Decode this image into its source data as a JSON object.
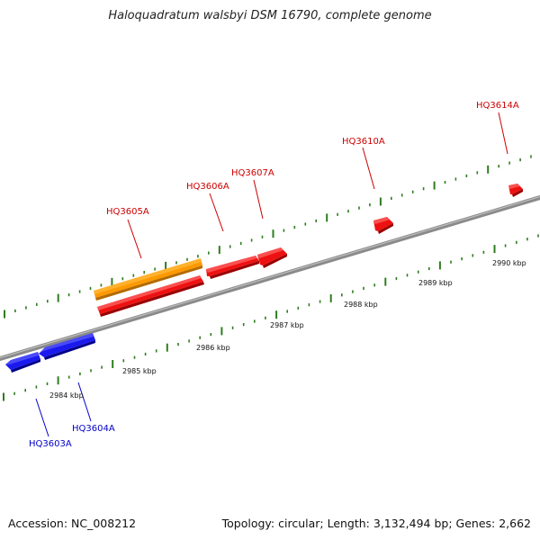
{
  "title": "Haloquadratum walsbyi DSM 16790, complete genome",
  "footer": {
    "accession": "Accession: NC_008212",
    "summary": "Topology: circular; Length: 3,132,494 bp; Genes: 2,662"
  },
  "colors": {
    "backbone": "#8a8a8a",
    "tick": "#2e7d1e",
    "forward_gene": "#ee1111",
    "forward_label": "#cc0000",
    "reverse_gene": "#1a1aee",
    "reverse_label": "#0000cc",
    "other_gene": "#ff9900"
  },
  "ruler_labels": [
    {
      "kbp": 2984,
      "text": "2984 kbp"
    },
    {
      "kbp": 2985,
      "text": "2985 kbp"
    },
    {
      "kbp": 2986,
      "text": "2986 kbp"
    },
    {
      "kbp": 2987,
      "text": "2987 kbp"
    },
    {
      "kbp": 2988,
      "text": "2988 kbp"
    },
    {
      "kbp": 2989,
      "text": "2989 kbp"
    },
    {
      "kbp": 2990,
      "text": "2990 kbp"
    }
  ],
  "genes": [
    {
      "id": "HQ3603A",
      "label": "HQ3603A",
      "strand": "reverse"
    },
    {
      "id": "HQ3604A",
      "label": "HQ3604A",
      "strand": "reverse"
    },
    {
      "id": "HQ3605A",
      "label": "HQ3605A",
      "strand": "forward"
    },
    {
      "id": "HQ3606A",
      "label": "HQ3606A",
      "strand": "forward"
    },
    {
      "id": "HQ3607A",
      "label": "HQ3607A",
      "strand": "forward"
    },
    {
      "id": "HQ3610A",
      "label": "HQ3610A",
      "strand": "forward"
    },
    {
      "id": "HQ3614A",
      "label": "HQ3614A",
      "strand": "forward"
    }
  ],
  "extra_features": [
    {
      "id": "orange-feature",
      "strand": "forward-outer"
    }
  ]
}
